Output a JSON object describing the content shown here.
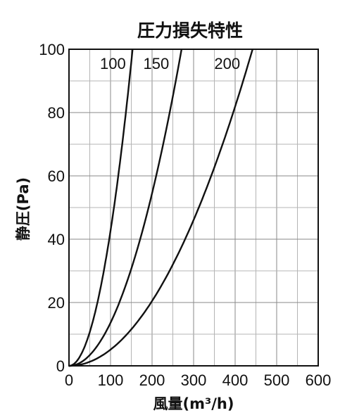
{
  "chart_data": {
    "type": "line",
    "title": "圧力損失特性",
    "xlabel": "風量(m³/h)",
    "ylabel": "静圧(Pa)",
    "xlim": [
      0,
      600
    ],
    "ylim": [
      0,
      100
    ],
    "x_ticks": [
      "0",
      "100",
      "200",
      "300",
      "400",
      "500",
      "600"
    ],
    "y_ticks": [
      "0",
      "20",
      "40",
      "60",
      "80",
      "100"
    ],
    "x_minor_step": 50,
    "y_minor_step": 10,
    "grid": true,
    "series": [
      {
        "name": "100",
        "x": [
          0,
          50,
          75,
          100,
          125,
          150,
          155
        ],
        "y": [
          0,
          10.8,
          24.4,
          43.3,
          67.7,
          97.5,
          100
        ]
      },
      {
        "name": "150",
        "x": [
          0,
          50,
          100,
          150,
          200,
          250,
          271
        ],
        "y": [
          0,
          3.4,
          13.6,
          30.6,
          54.5,
          85.1,
          100
        ]
      },
      {
        "name": "200",
        "x": [
          0,
          100,
          200,
          300,
          400,
          442
        ],
        "y": [
          0,
          5.1,
          20.5,
          46.1,
          81.9,
          100
        ]
      }
    ]
  }
}
